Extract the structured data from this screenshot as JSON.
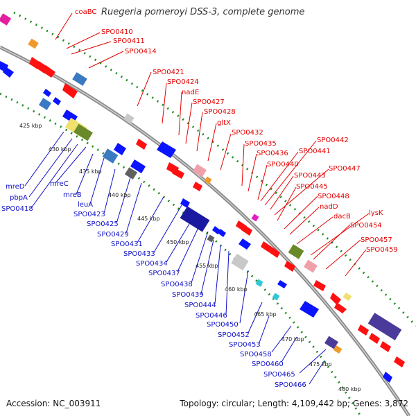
{
  "header": {
    "title": "Ruegeria pomeroyi DSS-3, complete genome"
  },
  "footer": {
    "accession": "Accession: NC_003911",
    "topology": "Topology: circular; Length: 4,109,442 bp; Genes: 3,872"
  },
  "colors": {
    "forward_label": "#e40000",
    "reverse_label": "#1010c8",
    "forward_gene": "#ff1010",
    "reverse_gene": "#0a14ff",
    "backbone": "#888888",
    "track_dots": "#1f8a1f"
  },
  "tick_labels": [
    "425 kbp",
    "430 kbp",
    "435 kbp",
    "440 kbp",
    "445 kbp",
    "450 kbp",
    "455 kbp",
    "460 kbp",
    "465 kbp",
    "470 kbp",
    "475 kbp",
    "480 kbp"
  ],
  "forward_labels": [
    "coaBC",
    "SPO0410",
    "SPO0411",
    "SPO0414",
    "SPO0421",
    "SPO0424",
    "nadE",
    "SPO0427",
    "SPO0428",
    "gltX",
    "SPO0432",
    "SPO0435",
    "SPO0436",
    "SPO0440",
    "SPO0441",
    "SPO0442",
    "SPO0443",
    "SPO0445",
    "SPO0447",
    "SPO0448",
    "nadD",
    "dacB",
    "lysK",
    "SPO0454",
    "SPO0457",
    "SPO0459"
  ],
  "reverse_labels": [
    "mreD",
    "pbpA",
    "SPO0418",
    "mreC",
    "mreB",
    "leuA",
    "SPO0423",
    "SPO0425",
    "SPO0429",
    "SPO0431",
    "SPO0433",
    "SPO0434",
    "SPO0437",
    "SPO0438",
    "SPO0439",
    "SPO0444",
    "SPO0446",
    "SPO0450",
    "SPO0452",
    "SPO0453",
    "SPO0458",
    "SPO0460",
    "SPO0465",
    "SPO0466"
  ]
}
